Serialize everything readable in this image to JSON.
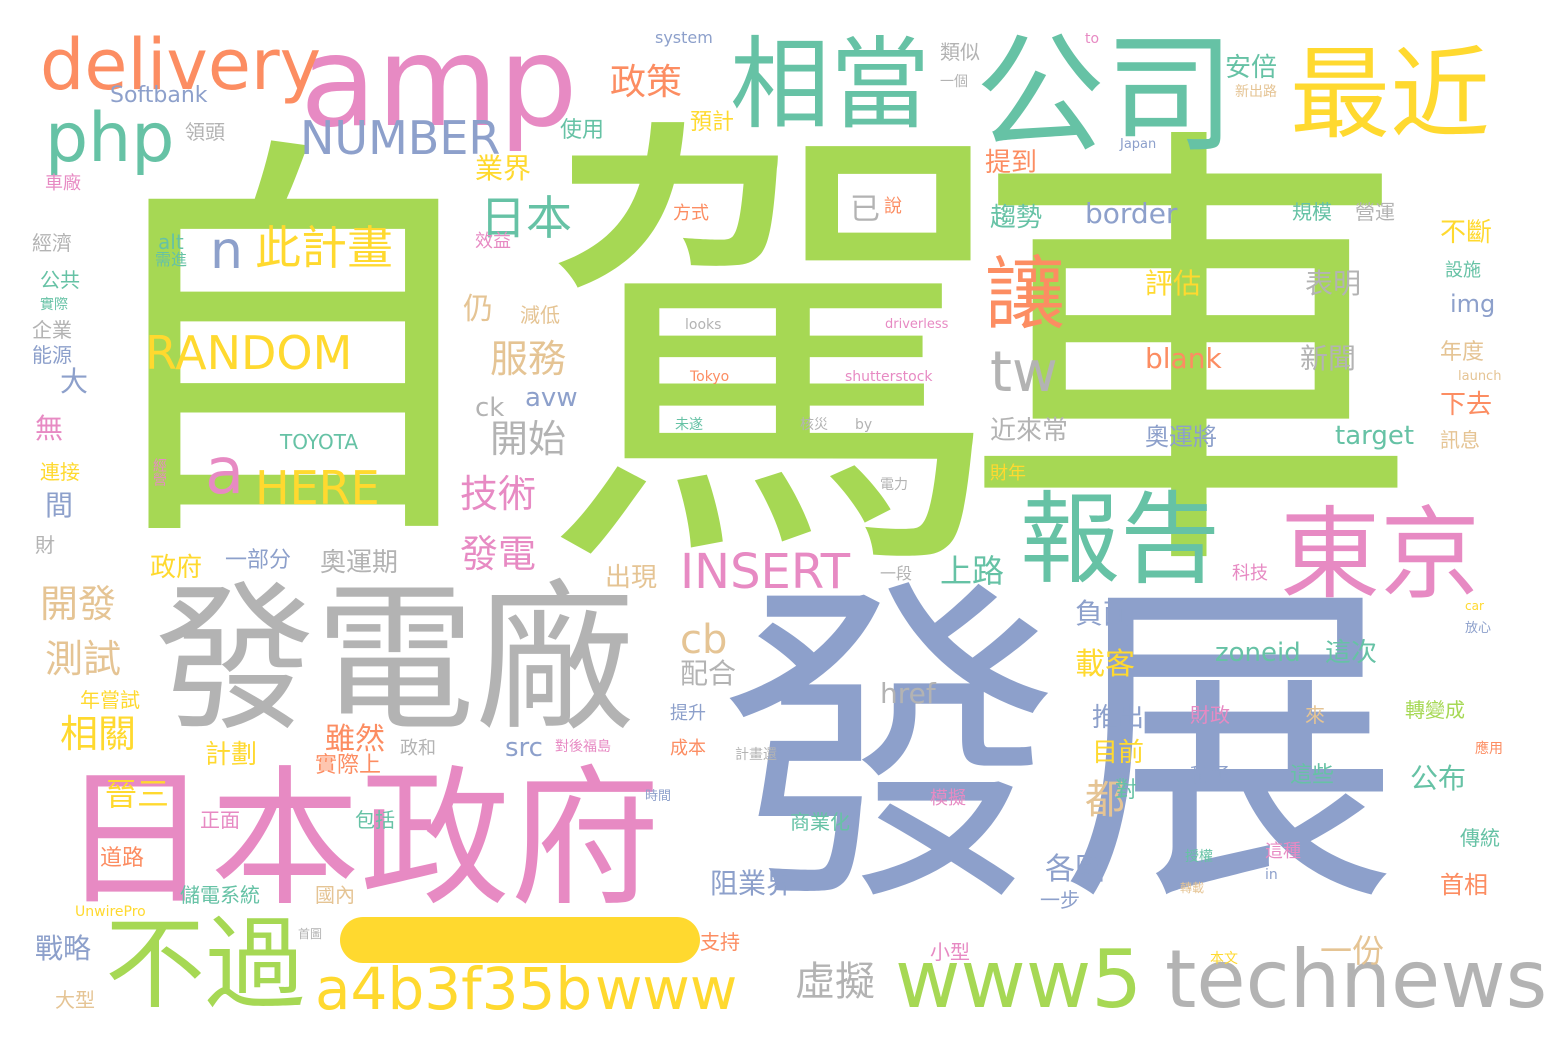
{
  "palette": {
    "green": "#a6d854",
    "blue": "#8da0cb",
    "pink": "#e78ac3",
    "gray": "#b3b3b3",
    "teal": "#66c2a5",
    "orange": "#fc8d62",
    "yellow": "#ffd92f",
    "tan": "#e5c494"
  },
  "words": [
    {
      "text": "自",
      "color": "green"
    },
    {
      "text": "駕",
      "color": "green"
    },
    {
      "text": "車",
      "color": "green"
    },
    {
      "text": "發展",
      "color": "blue"
    },
    {
      "text": "發電廠",
      "color": "gray"
    },
    {
      "text": "日本政府",
      "color": "pink"
    },
    {
      "text": "amp",
      "color": "pink"
    },
    {
      "text": "公司",
      "color": "teal"
    },
    {
      "text": "相當",
      "color": "teal"
    },
    {
      "text": "最近",
      "color": "yellow"
    },
    {
      "text": "delivery",
      "color": "orange"
    },
    {
      "text": "php",
      "color": "teal"
    },
    {
      "text": "報告",
      "color": "teal"
    },
    {
      "text": "東京",
      "color": "pink"
    },
    {
      "text": "不過",
      "color": "green"
    },
    {
      "text": "www5",
      "color": "green"
    },
    {
      "text": "technews",
      "color": "gray"
    },
    {
      "text": "a4b3f35b",
      "color": "yellow"
    },
    {
      "text": "www",
      "color": "yellow"
    },
    {
      "text": "讓",
      "color": "orange"
    },
    {
      "text": "tw",
      "color": "gray"
    },
    {
      "text": "NUMBER",
      "color": "blue"
    },
    {
      "text": "n",
      "color": "blue"
    },
    {
      "text": "此計畫",
      "color": "yellow"
    },
    {
      "text": "RANDOM",
      "color": "yellow"
    },
    {
      "text": "a",
      "color": "pink"
    },
    {
      "text": "HERE",
      "color": "yellow"
    },
    {
      "text": "INSERT",
      "color": "pink"
    },
    {
      "text": "日本",
      "color": "teal"
    },
    {
      "text": "政策",
      "color": "orange"
    },
    {
      "text": "服務",
      "color": "tan"
    },
    {
      "text": "開始",
      "color": "gray"
    },
    {
      "text": "技術",
      "color": "pink"
    },
    {
      "text": "發電",
      "color": "pink"
    },
    {
      "text": "仍",
      "color": "tan"
    },
    {
      "text": "虛擬",
      "color": "gray"
    },
    {
      "text": "cb",
      "color": "tan"
    },
    {
      "text": "都",
      "color": "tan"
    },
    {
      "text": "開發",
      "color": "tan"
    },
    {
      "text": "測試",
      "color": "tan"
    },
    {
      "text": "相關",
      "color": "yellow"
    },
    {
      "text": "晉三",
      "color": "yellow"
    },
    {
      "text": "上路",
      "color": "teal"
    },
    {
      "text": "一份",
      "color": "tan"
    },
    {
      "text": "近來常",
      "color": "gray"
    },
    {
      "text": "border",
      "color": "blue"
    },
    {
      "text": "blank",
      "color": "orange"
    },
    {
      "text": "target",
      "color": "teal"
    },
    {
      "text": "zoneid",
      "color": "teal"
    },
    {
      "text": "這次",
      "color": "teal"
    },
    {
      "text": "表明",
      "color": "gray"
    },
    {
      "text": "新聞",
      "color": "gray"
    },
    {
      "text": "評估",
      "color": "yellow"
    },
    {
      "text": "奧運將",
      "color": "blue"
    },
    {
      "text": "載客",
      "color": "yellow"
    },
    {
      "text": "負面",
      "color": "blue"
    },
    {
      "text": "href",
      "color": "gray"
    },
    {
      "text": "配合",
      "color": "gray"
    },
    {
      "text": "阻業界",
      "color": "blue"
    },
    {
      "text": "各國",
      "color": "blue"
    },
    {
      "text": "雖然",
      "color": "orange"
    },
    {
      "text": "實際上",
      "color": "orange"
    },
    {
      "text": "計劃",
      "color": "yellow"
    },
    {
      "text": "奧運期",
      "color": "gray"
    },
    {
      "text": "政府",
      "color": "yellow"
    },
    {
      "text": "一部分",
      "color": "blue"
    },
    {
      "text": "出現",
      "color": "tan"
    },
    {
      "text": "業界",
      "color": "yellow"
    },
    {
      "text": "提到",
      "color": "orange"
    },
    {
      "text": "趨勢",
      "color": "teal"
    },
    {
      "text": "安倍",
      "color": "teal"
    },
    {
      "text": "預計",
      "color": "yellow"
    },
    {
      "text": "使用",
      "color": "teal"
    },
    {
      "text": "Softbank",
      "color": "blue"
    },
    {
      "text": "system",
      "color": "blue"
    },
    {
      "text": "領頭",
      "color": "gray"
    },
    {
      "text": "類似",
      "color": "gray"
    },
    {
      "text": "一個",
      "color": "gray"
    },
    {
      "text": "to",
      "color": "pink"
    },
    {
      "text": "不斷",
      "color": "yellow"
    },
    {
      "text": "img",
      "color": "blue"
    },
    {
      "text": "下去",
      "color": "orange"
    },
    {
      "text": "年度",
      "color": "tan"
    },
    {
      "text": "訊息",
      "color": "tan"
    },
    {
      "text": "規模",
      "color": "teal"
    },
    {
      "text": "營運",
      "color": "gray"
    },
    {
      "text": "設施",
      "color": "teal"
    },
    {
      "text": "launch",
      "color": "tan"
    },
    {
      "text": "已",
      "color": "gray"
    },
    {
      "text": "說",
      "color": "orange"
    },
    {
      "text": "方式",
      "color": "orange"
    },
    {
      "text": "效益",
      "color": "pink"
    },
    {
      "text": "車廠",
      "color": "pink"
    },
    {
      "text": "經濟",
      "color": "gray"
    },
    {
      "text": "公共",
      "color": "teal"
    },
    {
      "text": "實際",
      "color": "teal"
    },
    {
      "text": "企業",
      "color": "gray"
    },
    {
      "text": "能源",
      "color": "blue"
    },
    {
      "text": "alt",
      "color": "teal"
    },
    {
      "text": "需進",
      "color": "teal"
    },
    {
      "text": "TOYOTA",
      "color": "teal"
    },
    {
      "text": "經營",
      "color": "pink"
    },
    {
      "text": "大",
      "color": "blue"
    },
    {
      "text": "無",
      "color": "pink"
    },
    {
      "text": "連接",
      "color": "yellow"
    },
    {
      "text": "間",
      "color": "blue"
    },
    {
      "text": "財",
      "color": "gray"
    },
    {
      "text": "ck",
      "color": "gray"
    },
    {
      "text": "avw",
      "color": "blue"
    },
    {
      "text": "減低",
      "color": "tan"
    },
    {
      "text": "looks",
      "color": "gray"
    },
    {
      "text": "driverless",
      "color": "pink"
    },
    {
      "text": "Tokyo",
      "color": "orange"
    },
    {
      "text": "shutterstock",
      "color": "pink"
    },
    {
      "text": "未遂",
      "color": "teal"
    },
    {
      "text": "核災",
      "color": "gray"
    },
    {
      "text": "by",
      "color": "gray"
    },
    {
      "text": "電力",
      "color": "gray"
    },
    {
      "text": "財年",
      "color": "yellow"
    },
    {
      "text": "一段",
      "color": "gray"
    },
    {
      "text": "科技",
      "color": "pink"
    },
    {
      "text": "car",
      "color": "yellow"
    },
    {
      "text": "放心",
      "color": "blue"
    },
    {
      "text": "Japan",
      "color": "blue"
    },
    {
      "text": "新出路",
      "color": "tan"
    },
    {
      "text": "src",
      "color": "blue"
    },
    {
      "text": "對後福島",
      "color": "pink"
    },
    {
      "text": "政和",
      "color": "gray"
    },
    {
      "text": "目前",
      "color": "yellow"
    },
    {
      "text": "推出",
      "color": "blue"
    },
    {
      "text": "財政",
      "color": "pink"
    },
    {
      "text": "來",
      "color": "tan"
    },
    {
      "text": "轉變成",
      "color": "green"
    },
    {
      "text": "應用",
      "color": "orange"
    },
    {
      "text": "積極",
      "color": "blue"
    },
    {
      "text": "這些",
      "color": "teal"
    },
    {
      "text": "公布",
      "color": "teal"
    },
    {
      "text": "提升",
      "color": "blue"
    },
    {
      "text": "成本",
      "color": "orange"
    },
    {
      "text": "計畫還",
      "color": "gray"
    },
    {
      "text": "時間",
      "color": "blue"
    },
    {
      "text": "模擬",
      "color": "pink"
    },
    {
      "text": "對",
      "color": "teal"
    },
    {
      "text": "商業化",
      "color": "teal"
    },
    {
      "text": "包括",
      "color": "teal"
    },
    {
      "text": "正面",
      "color": "pink"
    },
    {
      "text": "道路",
      "color": "orange"
    },
    {
      "text": "傳統",
      "color": "teal"
    },
    {
      "text": "這種",
      "color": "pink"
    },
    {
      "text": "in",
      "color": "blue"
    },
    {
      "text": "授權",
      "color": "teal"
    },
    {
      "text": "轉載",
      "color": "tan"
    },
    {
      "text": "首相",
      "color": "orange"
    },
    {
      "text": "一步",
      "color": "blue"
    },
    {
      "text": "國內",
      "color": "tan"
    },
    {
      "text": "儲電系統",
      "color": "teal"
    },
    {
      "text": "UnwirePro",
      "color": "yellow"
    },
    {
      "text": "首圖",
      "color": "gray"
    },
    {
      "text": "支持",
      "color": "orange"
    },
    {
      "text": "小型",
      "color": "pink"
    },
    {
      "text": "本文",
      "color": "yellow"
    },
    {
      "text": "戰略",
      "color": "blue"
    },
    {
      "text": "大型",
      "color": "tan"
    },
    {
      "text": "年嘗試",
      "color": "yellow"
    }
  ]
}
